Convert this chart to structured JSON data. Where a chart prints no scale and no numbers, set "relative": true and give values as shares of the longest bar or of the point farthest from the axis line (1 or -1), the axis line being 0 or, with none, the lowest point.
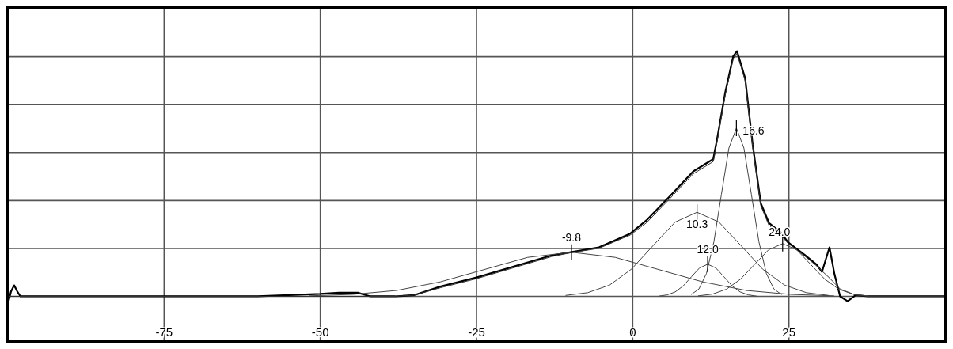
{
  "chart_data": {
    "type": "line",
    "relative": true,
    "xlim": [
      -100,
      50
    ],
    "xticks": [
      -75,
      -50,
      -25,
      0,
      25
    ],
    "grid": true,
    "marker": "none",
    "line_style": "solid",
    "series": [
      {
        "color": "#000000",
        "x": [
          -100,
          -99.5,
          -99,
          -98.5,
          -98,
          -60,
          -55,
          -50,
          -47,
          -44,
          -42,
          -38,
          -35,
          -30.8,
          -25,
          -13,
          -9.9,
          -5.4,
          -0.4,
          2.2,
          6,
          9.7,
          12.9,
          13.5,
          14.8,
          16.1,
          16.7,
          18,
          19.2,
          20.5,
          21.8,
          23.7,
          24.9,
          27.5,
          29.4,
          30.3,
          31.5,
          32.3,
          33.2,
          34.4,
          35.7,
          37.6,
          50
        ],
        "values": [
          -0.03,
          0.02,
          0.045,
          0.02,
          0,
          0,
          0.005,
          0.01,
          0.015,
          0.015,
          0,
          0,
          0.005,
          0.04,
          0.077,
          0.167,
          0.18,
          0.2,
          0.256,
          0.31,
          0.41,
          0.51,
          0.56,
          0.64,
          0.83,
          0.98,
          1,
          0.89,
          0.62,
          0.38,
          0.3,
          0.26,
          0.22,
          0.17,
          0.13,
          0.1,
          0.2,
          0.09,
          0,
          -0.02,
          0.005,
          0,
          0
        ]
      },
      {
        "color": "#333333",
        "x": [
          -100,
          -42,
          -38,
          -35,
          -30.8,
          -25,
          -13,
          -9.9,
          -5.4,
          -0.4,
          2.2,
          6,
          9.7,
          12.9,
          13.5,
          14.8,
          16.1,
          16.7,
          18,
          19.2,
          20.5,
          21.8,
          23.7,
          24.9,
          27.5,
          29.4,
          31.5,
          33.2,
          35.7,
          37.6,
          50
        ],
        "values": [
          0,
          0,
          0,
          0.005,
          0.035,
          0.072,
          0.162,
          0.178,
          0.196,
          0.25,
          0.3,
          0.4,
          0.5,
          0.55,
          0.63,
          0.82,
          0.97,
          0.99,
          0.88,
          0.61,
          0.37,
          0.29,
          0.25,
          0.215,
          0.165,
          0.125,
          0.075,
          0.03,
          0.005,
          0,
          0
        ]
      },
      {
        "color": "#444444",
        "x": [
          -51.8,
          -44.8,
          -37.8,
          -30.8,
          -23.8,
          -16.8,
          -9.8,
          -2.8,
          4.2,
          11.2,
          18.2,
          25.2,
          32.2
        ],
        "values": [
          0.002,
          0.008,
          0.024,
          0.059,
          0.109,
          0.159,
          0.18,
          0.159,
          0.109,
          0.059,
          0.024,
          0.008,
          0.002
        ]
      },
      {
        "color": "#444444",
        "x": [
          -10.7,
          -7.2,
          -3.7,
          -0.2,
          3.3,
          6.8,
          10.3,
          13.8,
          17.3,
          20.8,
          24.3,
          27.8,
          31.3
        ],
        "values": [
          0.004,
          0.015,
          0.046,
          0.111,
          0.208,
          0.303,
          0.343,
          0.303,
          0.208,
          0.111,
          0.046,
          0.015,
          0.004
        ]
      },
      {
        "color": "#444444",
        "x": [
          4.2,
          5.5,
          6.8,
          8.1,
          9.4,
          10.7,
          12.0,
          13.3,
          14.6,
          15.9,
          17.2,
          18.5,
          19.8
        ],
        "values": [
          0.001,
          0.006,
          0.018,
          0.043,
          0.08,
          0.116,
          0.131,
          0.116,
          0.08,
          0.043,
          0.018,
          0.006,
          0.001
        ]
      },
      {
        "color": "#444444",
        "x": [
          9.4,
          10.6,
          11.8,
          13.0,
          14.2,
          15.4,
          16.6,
          17.8,
          19.0,
          20.2,
          21.4,
          22.6,
          23.8
        ],
        "values": [
          0.008,
          0.03,
          0.093,
          0.223,
          0.416,
          0.605,
          0.686,
          0.605,
          0.416,
          0.223,
          0.093,
          0.03,
          0.008
        ]
      },
      {
        "color": "#444444",
        "x": [
          10.5,
          12.75,
          15.0,
          17.25,
          19.5,
          21.75,
          24.0,
          26.25,
          28.5,
          30.75,
          33.0,
          35.25,
          37.5
        ],
        "values": [
          0.002,
          0.009,
          0.029,
          0.07,
          0.13,
          0.19,
          0.215,
          0.19,
          0.13,
          0.07,
          0.029,
          0.009,
          0.002
        ]
      }
    ],
    "annotations": [
      {
        "text": "-9.8",
        "x": -9.8,
        "y": 0.18
      },
      {
        "text": "10.3",
        "x": 10.3,
        "y": 0.343
      },
      {
        "text": "12.0",
        "x": 12.0,
        "y": 0.131
      },
      {
        "text": "16.6",
        "x": 16.6,
        "y": 0.686
      },
      {
        "text": "24.0",
        "x": 24.0,
        "y": 0.215
      }
    ]
  }
}
